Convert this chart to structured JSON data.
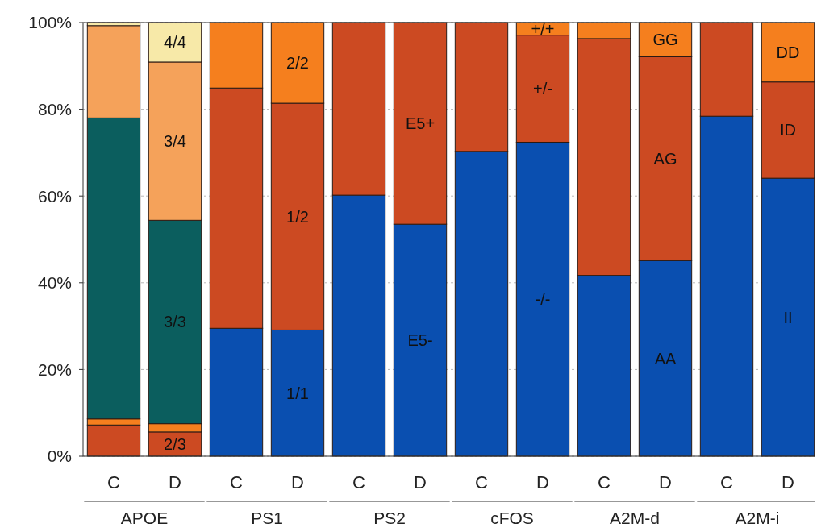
{
  "chart_data": {
    "type": "bar",
    "stacked": true,
    "grid": "y",
    "categories": [
      "C",
      "D",
      "C",
      "D",
      "C",
      "D",
      "C",
      "D",
      "C",
      "D",
      "C",
      "D"
    ],
    "ylim": [
      0,
      100
    ],
    "yticks": [
      {
        "value": 0,
        "label": "0%"
      },
      {
        "value": 20,
        "label": "20%"
      },
      {
        "value": 40,
        "label": "40%"
      },
      {
        "value": 60,
        "label": "60%"
      },
      {
        "value": 80,
        "label": "80%"
      },
      {
        "value": 100,
        "label": "100%"
      }
    ],
    "annotations": [
      "APOE",
      "PS1",
      "PS2",
      "cFOS",
      "A2M-d",
      "A2M-i"
    ],
    "series": [
      {
        "name": "2/3",
        "color": "#cc4a22",
        "values": [
          7.2,
          5.6,
          null,
          null,
          null,
          null,
          null,
          null,
          null,
          null,
          null,
          null
        ]
      },
      {
        "color": "#f57f1e",
        "values": [
          1.4,
          1.9,
          null,
          null,
          null,
          null,
          null,
          null,
          null,
          null,
          null,
          null
        ]
      },
      {
        "name": "3/3",
        "color": "#0b5e5e",
        "values": [
          69.4,
          46.9,
          null,
          null,
          null,
          null,
          null,
          null,
          null,
          null,
          null,
          null
        ]
      },
      {
        "name": "3/4",
        "color": "#f5a25a",
        "values": [
          21.3,
          36.5,
          null,
          null,
          null,
          null,
          null,
          null,
          null,
          null,
          null,
          null
        ]
      },
      {
        "name": "4/4",
        "color": "#f7e9a8",
        "values": [
          0.7,
          9.1,
          null,
          null,
          null,
          null,
          null,
          null,
          null,
          null,
          null,
          null
        ]
      },
      {
        "name": "1/1",
        "color": "#0a4fb0",
        "values": [
          null,
          null,
          29.5,
          29.1,
          null,
          null,
          null,
          null,
          null,
          null,
          null,
          null
        ]
      },
      {
        "name": "1/2",
        "color": "#cc4a22",
        "values": [
          null,
          null,
          55.4,
          52.3,
          null,
          null,
          null,
          null,
          null,
          null,
          null,
          null
        ]
      },
      {
        "name": "2/2",
        "color": "#f57f1e",
        "values": [
          null,
          null,
          15.1,
          18.6,
          null,
          null,
          null,
          null,
          null,
          null,
          null,
          null
        ]
      },
      {
        "name": "E5-",
        "color": "#0a4fb0",
        "values": [
          null,
          null,
          null,
          null,
          60.2,
          53.5,
          null,
          null,
          null,
          null,
          null,
          null
        ]
      },
      {
        "name": "E5+",
        "color": "#cc4a22",
        "values": [
          null,
          null,
          null,
          null,
          39.8,
          46.5,
          null,
          null,
          null,
          null,
          null,
          null
        ]
      },
      {
        "name": "-/-",
        "color": "#0a4fb0",
        "values": [
          null,
          null,
          null,
          null,
          null,
          null,
          70.3,
          72.4,
          null,
          null,
          null,
          null
        ]
      },
      {
        "name": "+/-",
        "color": "#cc4a22",
        "values": [
          null,
          null,
          null,
          null,
          null,
          null,
          29.7,
          24.7,
          null,
          null,
          null,
          null
        ]
      },
      {
        "name": "+/+",
        "color": "#f57f1e",
        "values": [
          null,
          null,
          null,
          null,
          null,
          null,
          null,
          2.9,
          null,
          null,
          null,
          null
        ]
      },
      {
        "name": "AA",
        "color": "#0a4fb0",
        "values": [
          null,
          null,
          null,
          null,
          null,
          null,
          null,
          null,
          41.7,
          45.1,
          null,
          null
        ]
      },
      {
        "name": "AG",
        "color": "#cc4a22",
        "values": [
          null,
          null,
          null,
          null,
          null,
          null,
          null,
          null,
          54.6,
          47.0,
          null,
          null
        ]
      },
      {
        "name": "GG",
        "color": "#f57f1e",
        "values": [
          null,
          null,
          null,
          null,
          null,
          null,
          null,
          null,
          3.7,
          7.9,
          null,
          null
        ]
      },
      {
        "name": "II",
        "color": "#0a4fb0",
        "values": [
          null,
          null,
          null,
          null,
          null,
          null,
          null,
          null,
          null,
          null,
          78.4,
          64.1
        ]
      },
      {
        "name": "ID",
        "color": "#cc4a22",
        "values": [
          null,
          null,
          null,
          null,
          null,
          null,
          null,
          null,
          null,
          null,
          21.6,
          22.2
        ]
      },
      {
        "name": "DD",
        "color": "#f57f1e",
        "values": [
          null,
          null,
          null,
          null,
          null,
          null,
          null,
          null,
          null,
          null,
          null,
          13.7
        ]
      }
    ]
  }
}
